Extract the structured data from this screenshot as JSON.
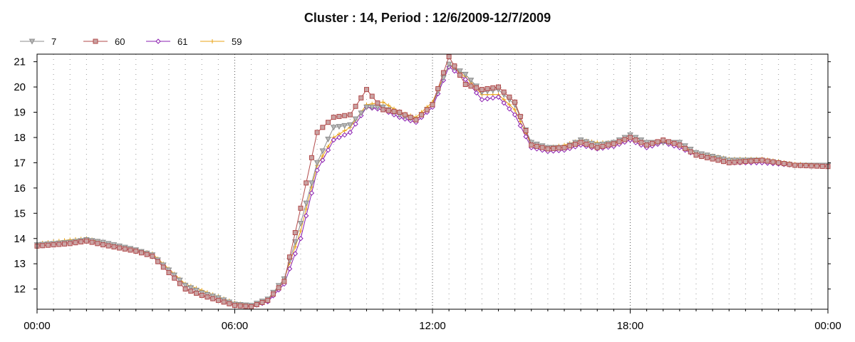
{
  "chart_data": {
    "type": "line",
    "title": "Cluster : 14, Period : 12/6/2009-12/7/2009",
    "xlabel": "",
    "ylabel": "",
    "x_tick_labels": [
      "00:00",
      "06:00",
      "12:00",
      "18:00",
      "00:00"
    ],
    "x_hours": [
      0,
      6,
      12,
      18,
      24
    ],
    "ylim": [
      11.2,
      21.3
    ],
    "y_ticks": [
      12,
      13,
      14,
      15,
      16,
      17,
      18,
      19,
      20,
      21
    ],
    "grid": "dotted",
    "legend_position": "top-left",
    "series": [
      {
        "name": "7",
        "color": "#8c8c8c",
        "marker": "triangle-down",
        "points": [
          [
            0,
            13.75
          ],
          [
            1,
            13.85
          ],
          [
            1.5,
            13.95
          ],
          [
            2,
            13.85
          ],
          [
            3,
            13.55
          ],
          [
            3.5,
            13.35
          ],
          [
            4,
            12.75
          ],
          [
            4.5,
            12.15
          ],
          [
            5,
            11.85
          ],
          [
            5.5,
            11.65
          ],
          [
            6,
            11.4
          ],
          [
            6.5,
            11.35
          ],
          [
            7,
            11.6
          ],
          [
            7.5,
            12.4
          ],
          [
            8,
            14.6
          ],
          [
            8.5,
            17.0
          ],
          [
            9,
            18.4
          ],
          [
            9.5,
            18.5
          ],
          [
            10,
            19.2
          ],
          [
            10.5,
            19.2
          ],
          [
            11,
            18.9
          ],
          [
            11.5,
            18.7
          ],
          [
            12,
            19.3
          ],
          [
            12.5,
            20.9
          ],
          [
            13,
            20.5
          ],
          [
            13.5,
            19.8
          ],
          [
            14,
            19.9
          ],
          [
            14.5,
            19.3
          ],
          [
            15,
            17.8
          ],
          [
            15.5,
            17.6
          ],
          [
            16,
            17.6
          ],
          [
            16.5,
            17.9
          ],
          [
            17,
            17.7
          ],
          [
            17.5,
            17.8
          ],
          [
            18,
            18.1
          ],
          [
            18.5,
            17.8
          ],
          [
            19,
            17.8
          ],
          [
            19.5,
            17.8
          ],
          [
            20,
            17.4
          ],
          [
            21,
            17.1
          ],
          [
            22,
            17.1
          ],
          [
            23,
            16.9
          ],
          [
            24,
            16.9
          ]
        ]
      },
      {
        "name": "60",
        "color": "#b24a4a",
        "marker": "square",
        "points": [
          [
            0,
            13.7
          ],
          [
            1,
            13.8
          ],
          [
            1.5,
            13.9
          ],
          [
            2,
            13.75
          ],
          [
            3,
            13.5
          ],
          [
            3.5,
            13.3
          ],
          [
            4,
            12.65
          ],
          [
            4.5,
            12.0
          ],
          [
            5,
            11.75
          ],
          [
            5.5,
            11.55
          ],
          [
            6,
            11.35
          ],
          [
            6.5,
            11.3
          ],
          [
            7,
            11.55
          ],
          [
            7.5,
            12.3
          ],
          [
            8,
            15.2
          ],
          [
            8.5,
            18.2
          ],
          [
            9,
            18.8
          ],
          [
            9.5,
            18.9
          ],
          [
            10,
            19.9
          ],
          [
            10.5,
            19.1
          ],
          [
            11,
            19.0
          ],
          [
            11.5,
            18.7
          ],
          [
            12,
            19.3
          ],
          [
            12.5,
            21.2
          ],
          [
            13,
            20.1
          ],
          [
            13.5,
            19.9
          ],
          [
            14,
            20.0
          ],
          [
            14.5,
            19.4
          ],
          [
            15,
            17.7
          ],
          [
            15.5,
            17.55
          ],
          [
            16,
            17.6
          ],
          [
            16.5,
            17.8
          ],
          [
            17,
            17.6
          ],
          [
            17.5,
            17.75
          ],
          [
            18,
            18.0
          ],
          [
            18.5,
            17.7
          ],
          [
            19,
            17.9
          ],
          [
            19.5,
            17.7
          ],
          [
            20,
            17.3
          ],
          [
            21,
            17.0
          ],
          [
            22,
            17.1
          ],
          [
            23,
            16.9
          ],
          [
            24,
            16.85
          ]
        ]
      },
      {
        "name": "61",
        "color": "#8b1fb0",
        "marker": "diamond",
        "points": [
          [
            0,
            13.7
          ],
          [
            1,
            13.8
          ],
          [
            1.5,
            13.9
          ],
          [
            2,
            13.75
          ],
          [
            3,
            13.5
          ],
          [
            3.5,
            13.3
          ],
          [
            4,
            12.65
          ],
          [
            4.5,
            12.0
          ],
          [
            5,
            11.75
          ],
          [
            5.5,
            11.55
          ],
          [
            6,
            11.35
          ],
          [
            6.5,
            11.3
          ],
          [
            7,
            11.5
          ],
          [
            7.5,
            12.2
          ],
          [
            8,
            14.0
          ],
          [
            8.5,
            16.7
          ],
          [
            9,
            17.9
          ],
          [
            9.5,
            18.2
          ],
          [
            10,
            19.2
          ],
          [
            10.5,
            19.1
          ],
          [
            11,
            18.8
          ],
          [
            11.5,
            18.6
          ],
          [
            12,
            19.2
          ],
          [
            12.5,
            20.8
          ],
          [
            13,
            20.3
          ],
          [
            13.5,
            19.5
          ],
          [
            14,
            19.6
          ],
          [
            14.5,
            18.9
          ],
          [
            15,
            17.6
          ],
          [
            15.5,
            17.45
          ],
          [
            16,
            17.5
          ],
          [
            16.5,
            17.7
          ],
          [
            17,
            17.55
          ],
          [
            17.5,
            17.65
          ],
          [
            18,
            17.9
          ],
          [
            18.5,
            17.6
          ],
          [
            19,
            17.8
          ],
          [
            19.5,
            17.6
          ],
          [
            20,
            17.3
          ],
          [
            21,
            17.0
          ],
          [
            22,
            17.0
          ],
          [
            23,
            16.9
          ],
          [
            24,
            16.85
          ]
        ]
      },
      {
        "name": "59",
        "color": "#e8a317",
        "marker": "plus",
        "points": [
          [
            0,
            13.8
          ],
          [
            1,
            13.95
          ],
          [
            1.5,
            14.0
          ],
          [
            2,
            13.85
          ],
          [
            3,
            13.55
          ],
          [
            3.5,
            13.4
          ],
          [
            4,
            12.8
          ],
          [
            4.5,
            12.2
          ],
          [
            5,
            11.95
          ],
          [
            5.5,
            11.7
          ],
          [
            6,
            11.45
          ],
          [
            6.5,
            11.35
          ],
          [
            7,
            11.6
          ],
          [
            7.5,
            12.4
          ],
          [
            8,
            14.3
          ],
          [
            8.5,
            16.9
          ],
          [
            9,
            18.0
          ],
          [
            9.5,
            18.4
          ],
          [
            10,
            19.3
          ],
          [
            10.5,
            19.4
          ],
          [
            11,
            19.0
          ],
          [
            11.5,
            18.8
          ],
          [
            12,
            19.4
          ],
          [
            12.5,
            20.9
          ],
          [
            13,
            20.4
          ],
          [
            13.5,
            19.7
          ],
          [
            14,
            19.7
          ],
          [
            14.5,
            19.1
          ],
          [
            15,
            17.7
          ],
          [
            15.5,
            17.6
          ],
          [
            16,
            17.7
          ],
          [
            16.5,
            17.9
          ],
          [
            17,
            17.8
          ],
          [
            17.5,
            17.8
          ],
          [
            18,
            18.0
          ],
          [
            18.5,
            17.7
          ],
          [
            19,
            17.85
          ],
          [
            19.5,
            17.7
          ],
          [
            20,
            17.4
          ],
          [
            21,
            17.15
          ],
          [
            22,
            17.15
          ],
          [
            23,
            16.95
          ],
          [
            24,
            16.9
          ]
        ]
      }
    ]
  }
}
